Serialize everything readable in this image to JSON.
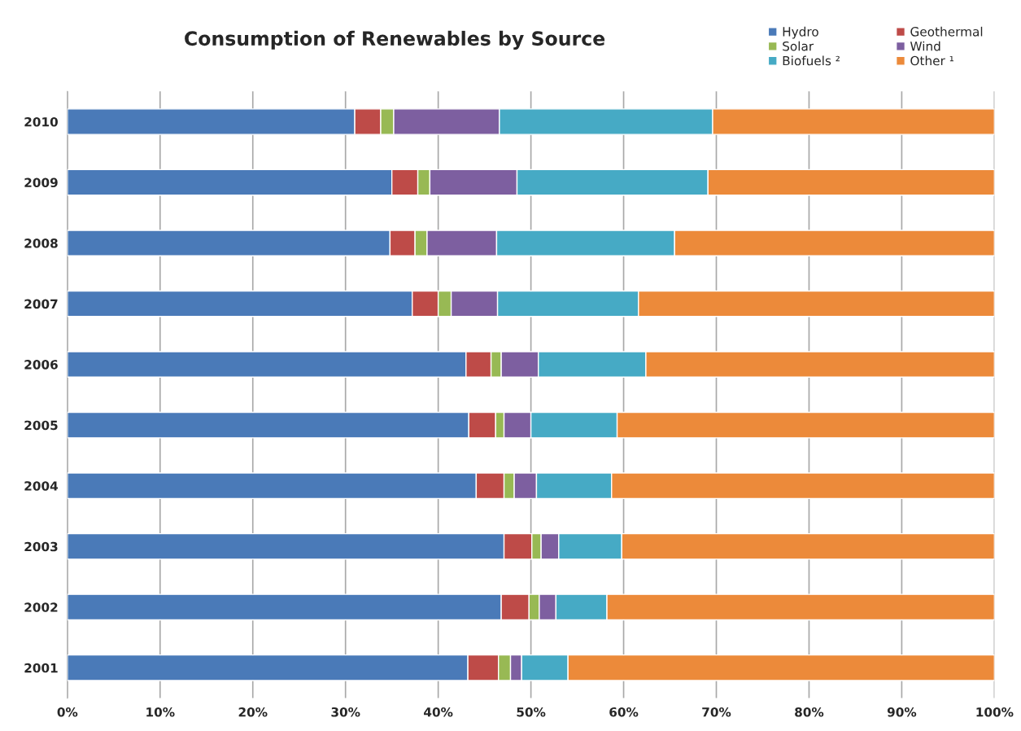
{
  "chart_data": {
    "type": "bar",
    "title": "Consumption of Renewables by Source",
    "orientation": "horizontal",
    "stacked": true,
    "categories": [
      "2010",
      "2009",
      "2008",
      "2007",
      "2006",
      "2005",
      "2004",
      "2003",
      "2002",
      "2001"
    ],
    "series": [
      {
        "name": "Hydro",
        "color": "#4a7ab8",
        "values": [
          31.0,
          35.0,
          34.8,
          37.2,
          43.0,
          43.3,
          44.1,
          47.1,
          46.8,
          43.2
        ]
      },
      {
        "name": "Geothermal",
        "color": "#be4b48",
        "values": [
          2.8,
          2.8,
          2.7,
          2.8,
          2.7,
          2.9,
          3.0,
          3.0,
          3.0,
          3.3
        ]
      },
      {
        "name": "Solar",
        "color": "#98b954",
        "values": [
          1.4,
          1.3,
          1.3,
          1.4,
          1.1,
          0.9,
          1.1,
          1.0,
          1.1,
          1.3
        ]
      },
      {
        "name": "Wind",
        "color": "#7d5fa0",
        "values": [
          11.4,
          9.4,
          7.5,
          5.0,
          4.0,
          2.9,
          2.4,
          1.9,
          1.8,
          1.2
        ]
      },
      {
        "name": "Biofuels ²",
        "color": "#46aac5",
        "values": [
          23.0,
          20.6,
          19.2,
          15.2,
          11.6,
          9.3,
          8.1,
          6.8,
          5.5,
          5.0
        ]
      },
      {
        "name": "Other ¹",
        "color": "#ec8a3a",
        "values": [
          30.4,
          30.9,
          34.5,
          38.4,
          37.6,
          40.7,
          41.3,
          40.2,
          41.8,
          46.0
        ]
      }
    ],
    "xlim": [
      0,
      100
    ],
    "xticks": [
      {
        "value": 0,
        "label": "0%"
      },
      {
        "value": 10,
        "label": "10%"
      },
      {
        "value": 20,
        "label": "20%"
      },
      {
        "value": 30,
        "label": "30%"
      },
      {
        "value": 40,
        "label": "40%"
      },
      {
        "value": 50,
        "label": "50%"
      },
      {
        "value": 60,
        "label": "60%"
      },
      {
        "value": 70,
        "label": "70%"
      },
      {
        "value": 80,
        "label": "80%"
      },
      {
        "value": 90,
        "label": "90%"
      },
      {
        "value": 100,
        "label": "100%"
      }
    ],
    "grid": "x",
    "legend": "top right"
  }
}
